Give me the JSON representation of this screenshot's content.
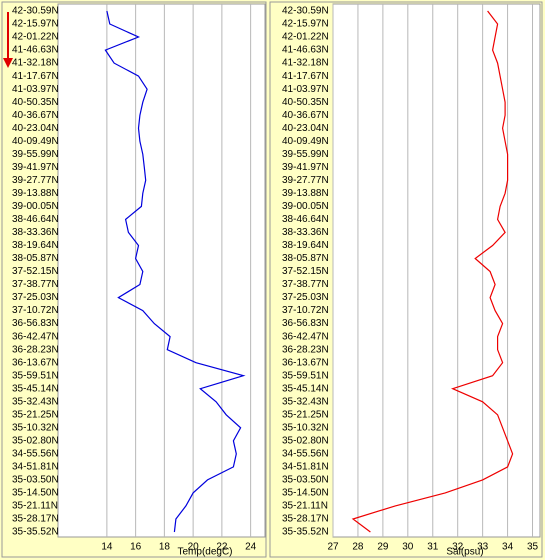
{
  "chart_data": [
    {
      "type": "hline",
      "xlabel": "Temp(degC)",
      "color": "#0000dd",
      "categories": [
        "42-30.59N",
        "42-15.97N",
        "42-01.22N",
        "41-46.63N",
        "41-32.18N",
        "41-17.67N",
        "41-03.97N",
        "40-50.35N",
        "40-36.67N",
        "40-23.04N",
        "40-09.49N",
        "39-55.99N",
        "39-41.97N",
        "39-27.77N",
        "39-13.88N",
        "39-00.05N",
        "38-46.64N",
        "38-33.36N",
        "38-19.64N",
        "38-05.87N",
        "37-52.15N",
        "37-38.77N",
        "37-25.03N",
        "37-10.72N",
        "36-56.83N",
        "36-42.47N",
        "36-28.23N",
        "36-13.67N",
        "35-59.51N",
        "35-45.14N",
        "35-32.43N",
        "35-21.25N",
        "35-10.32N",
        "35-02.80N",
        "34-55.56N",
        "34-51.81N",
        "35-03.50N",
        "35-14.50N",
        "35-21.11N",
        "35-28.17N",
        "35-35.52N"
      ],
      "values": [
        14.0,
        14.2,
        16.2,
        13.9,
        14.5,
        16.2,
        16.8,
        16.5,
        16.3,
        16.2,
        16.3,
        16.5,
        16.6,
        16.7,
        16.5,
        16.4,
        15.3,
        15.5,
        16.2,
        16.0,
        16.5,
        16.3,
        14.8,
        16.5,
        17.3,
        18.4,
        18.2,
        20.2,
        23.5,
        20.5,
        21.6,
        22.3,
        23.3,
        22.8,
        23.0,
        22.8,
        21.0,
        20.0,
        19.5,
        18.8,
        18.7
      ],
      "xlim": [
        10.6,
        25
      ],
      "xticks": [
        14,
        16,
        18,
        20,
        22,
        24
      ],
      "grid": true
    },
    {
      "type": "hline",
      "xlabel": "Sal(psu)",
      "color": "#ee0000",
      "categories": [
        "42-30.59N",
        "42-15.97N",
        "42-01.22N",
        "41-46.63N",
        "41-32.18N",
        "41-17.67N",
        "41-03.97N",
        "40-50.35N",
        "40-36.67N",
        "40-23.04N",
        "40-09.49N",
        "39-55.99N",
        "39-41.97N",
        "39-27.77N",
        "39-13.88N",
        "39-00.05N",
        "38-46.64N",
        "38-33.36N",
        "38-19.64N",
        "38-05.87N",
        "37-52.15N",
        "37-38.77N",
        "37-25.03N",
        "37-10.72N",
        "36-56.83N",
        "36-42.47N",
        "36-28.23N",
        "36-13.67N",
        "35-59.51N",
        "35-45.14N",
        "35-32.43N",
        "35-21.25N",
        "35-10.32N",
        "35-02.80N",
        "34-55.56N",
        "34-51.81N",
        "35-03.50N",
        "35-14.50N",
        "35-21.11N",
        "35-28.17N",
        "35-35.52N"
      ],
      "values": [
        33.2,
        33.6,
        33.5,
        33.4,
        33.6,
        33.7,
        33.8,
        33.9,
        33.9,
        33.8,
        33.9,
        34.0,
        34.0,
        34.0,
        33.9,
        33.7,
        33.6,
        33.9,
        33.4,
        32.7,
        33.3,
        33.5,
        33.3,
        33.5,
        33.8,
        33.6,
        33.6,
        33.8,
        33.4,
        31.8,
        33.0,
        33.6,
        33.8,
        34.0,
        34.2,
        34.0,
        33.0,
        31.5,
        29.5,
        27.8,
        28.5
      ],
      "xlim": [
        27,
        35.3
      ],
      "xticks": [
        27,
        28,
        29,
        30,
        31,
        32,
        33,
        34,
        35
      ],
      "grid": true
    }
  ]
}
